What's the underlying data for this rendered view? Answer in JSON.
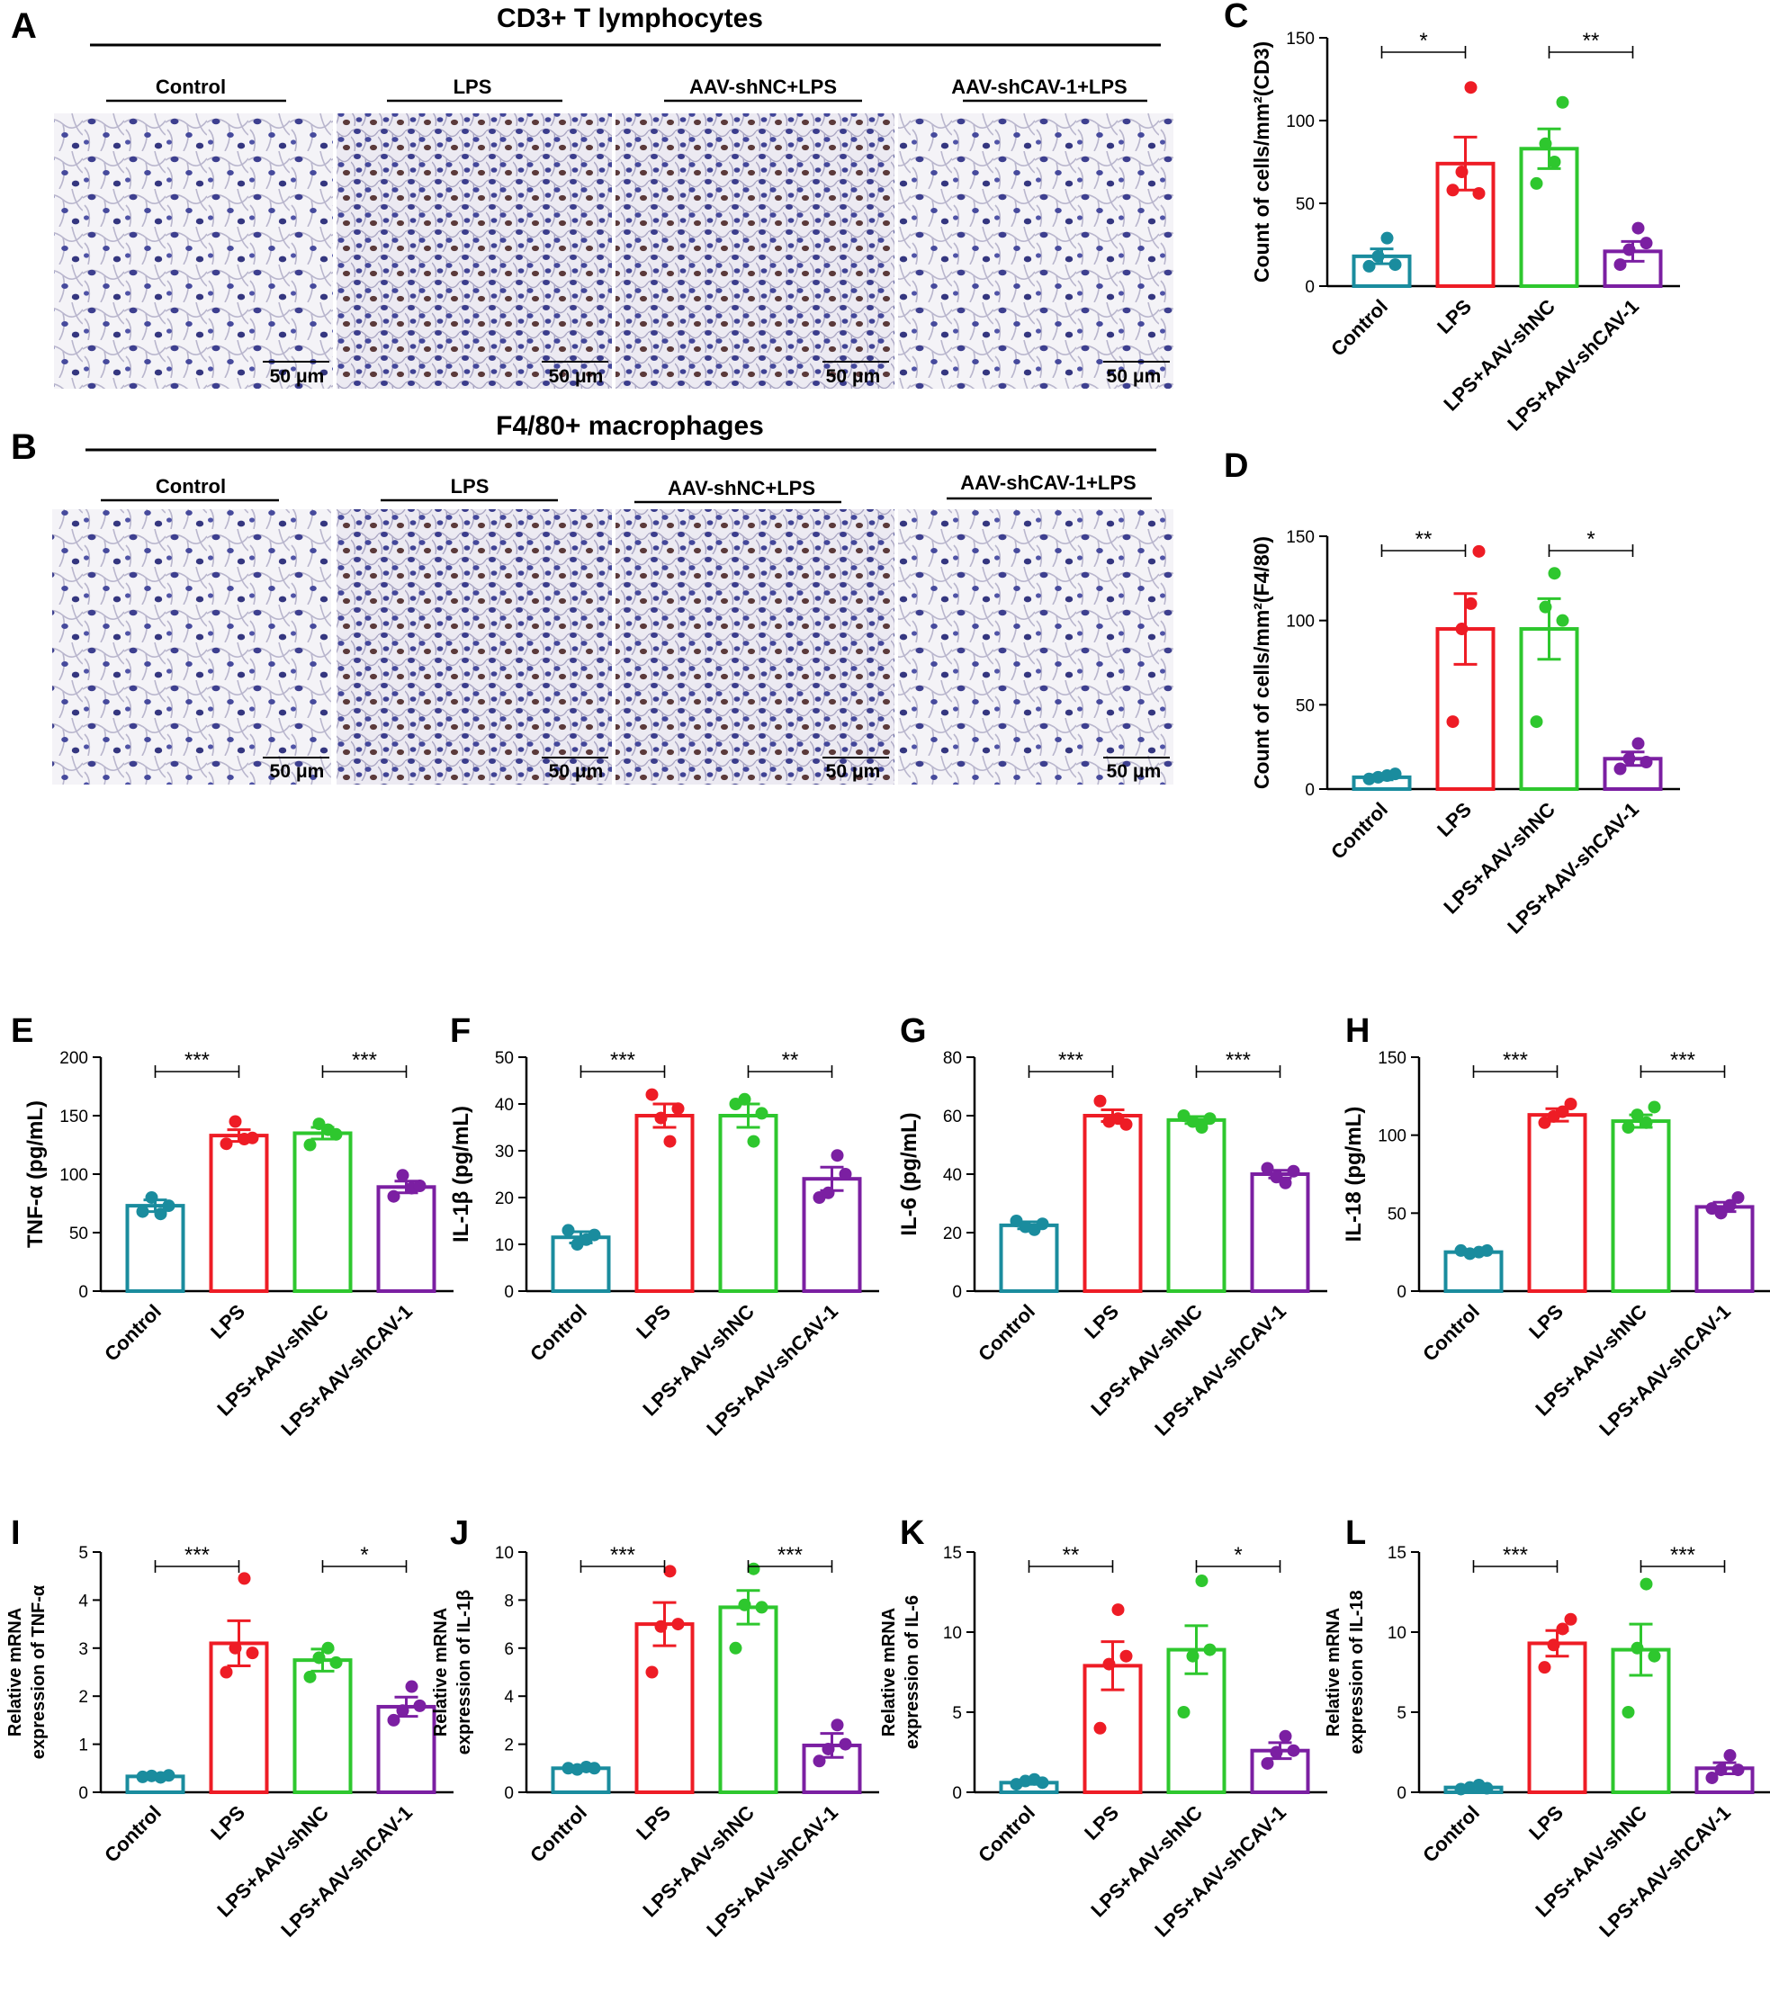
{
  "figure": {
    "panel_a": {
      "letter": "A",
      "title": "CD3+ T lymphocytes",
      "labels": [
        "Control",
        "LPS",
        "AAV-shNC+LPS",
        "AAV-shCAV-1+LPS"
      ],
      "scale_bars": [
        "50 μm",
        "50 μm",
        "50 μm",
        "50 μm"
      ]
    },
    "panel_b": {
      "letter": "B",
      "title": "F4/80+ macrophages",
      "labels": [
        "Control",
        "LPS",
        "AAV-shNC+LPS",
        "AAV-shCAV-1+LPS"
      ],
      "scale_bars": [
        "50 μm",
        "50 μm",
        "50 μm",
        "50 μm"
      ]
    }
  },
  "colors": {
    "control": "#1a8c9e",
    "lps": "#ee1c25",
    "shnc": "#2ec72e",
    "shcav": "#7b1fa2"
  },
  "chart_data": [
    {
      "id": "C",
      "letter": "C",
      "type": "bar",
      "ylabel": "Count of cells/mm²(CD3)",
      "ylim": [
        0,
        150
      ],
      "yticks": [
        0,
        50,
        100,
        150
      ],
      "categories": [
        "Control",
        "LPS",
        "LPS+AAV-shNC",
        "LPS+AAV-shCAV-1"
      ],
      "values": [
        18,
        74,
        83,
        21
      ],
      "errors": [
        4.5,
        16,
        12,
        6
      ],
      "points": [
        [
          12,
          18,
          29,
          13
        ],
        [
          58,
          69,
          120,
          56
        ],
        [
          62,
          86,
          75,
          111
        ],
        [
          13,
          22,
          35,
          26
        ]
      ],
      "significance": [
        {
          "from": 0,
          "to": 1,
          "label": "*"
        },
        {
          "from": 2,
          "to": 3,
          "label": "**"
        }
      ]
    },
    {
      "id": "D",
      "letter": "D",
      "type": "bar",
      "ylabel": "Count of cells/mm²(F4/80)",
      "ylim": [
        0,
        150
      ],
      "yticks": [
        0,
        50,
        100,
        150
      ],
      "categories": [
        "Control",
        "LPS",
        "LPS+AAV-shNC",
        "LPS+AAV-shCAV-1"
      ],
      "values": [
        7,
        95,
        95,
        18
      ],
      "errors": [
        1.5,
        21,
        18,
        4
      ],
      "points": [
        [
          6,
          7,
          8,
          9
        ],
        [
          40,
          95,
          110,
          141
        ],
        [
          40,
          108,
          128,
          100
        ],
        [
          12,
          18,
          27,
          16
        ]
      ],
      "significance": [
        {
          "from": 0,
          "to": 1,
          "label": "**"
        },
        {
          "from": 2,
          "to": 3,
          "label": "*"
        }
      ]
    },
    {
      "id": "E",
      "letter": "E",
      "type": "bar",
      "ylabel": "TNF-α (pg/mL)",
      "ylim": [
        0,
        200
      ],
      "yticks": [
        0,
        50,
        100,
        150,
        200
      ],
      "categories": [
        "Control",
        "LPS",
        "LPS+AAV-shNC",
        "LPS+AAV-shCAV-1"
      ],
      "values": [
        73,
        133,
        135,
        89
      ],
      "errors": [
        5,
        5,
        5,
        5
      ],
      "points": [
        [
          68,
          80,
          66,
          73
        ],
        [
          126,
          145,
          130,
          131
        ],
        [
          125,
          143,
          138,
          134
        ],
        [
          81,
          99,
          88,
          90
        ]
      ],
      "significance": [
        {
          "from": 0,
          "to": 1,
          "label": "***"
        },
        {
          "from": 2,
          "to": 3,
          "label": "***"
        }
      ]
    },
    {
      "id": "F",
      "letter": "F",
      "type": "bar",
      "ylabel": "IL-1β (pg/mL)",
      "ylim": [
        0,
        50
      ],
      "yticks": [
        0,
        10,
        20,
        30,
        40,
        50
      ],
      "categories": [
        "Control",
        "LPS",
        "LPS+AAV-shNC",
        "LPS+AAV-shCAV-1"
      ],
      "values": [
        11.5,
        37.5,
        37.5,
        24
      ],
      "errors": [
        1.2,
        2.5,
        2.5,
        2.5
      ],
      "points": [
        [
          13,
          10,
          11,
          12
        ],
        [
          42,
          37,
          32,
          39
        ],
        [
          40,
          41,
          32,
          38
        ],
        [
          20,
          21,
          29,
          25
        ]
      ],
      "significance": [
        {
          "from": 0,
          "to": 1,
          "label": "***"
        },
        {
          "from": 2,
          "to": 3,
          "label": "**"
        }
      ]
    },
    {
      "id": "G",
      "letter": "G",
      "type": "bar",
      "ylabel": "IL-6 (pg/mL)",
      "ylim": [
        0,
        80
      ],
      "yticks": [
        0,
        20,
        40,
        60,
        80
      ],
      "categories": [
        "Control",
        "LPS",
        "LPS+AAV-shNC",
        "LPS+AAV-shCAV-1"
      ],
      "values": [
        22.5,
        60,
        58.5,
        40
      ],
      "errors": [
        1.2,
        2,
        1.2,
        1.3
      ],
      "points": [
        [
          24,
          22,
          21,
          23
        ],
        [
          65,
          58,
          59,
          57
        ],
        [
          60,
          58,
          56,
          59
        ],
        [
          42,
          39,
          37,
          41
        ]
      ],
      "significance": [
        {
          "from": 0,
          "to": 1,
          "label": "***"
        },
        {
          "from": 2,
          "to": 3,
          "label": "***"
        }
      ]
    },
    {
      "id": "H",
      "letter": "H",
      "type": "bar",
      "ylabel": "IL-18 (pg/mL)",
      "ylim": [
        0,
        150
      ],
      "yticks": [
        0,
        50,
        100,
        150
      ],
      "categories": [
        "Control",
        "LPS",
        "LPS+AAV-shNC",
        "LPS+AAV-shCAV-1"
      ],
      "values": [
        25,
        113,
        109,
        54
      ],
      "errors": [
        1,
        4,
        4,
        3
      ],
      "points": [
        [
          26,
          24,
          25,
          26
        ],
        [
          108,
          112,
          115,
          120
        ],
        [
          105,
          113,
          108,
          118
        ],
        [
          53,
          50,
          55,
          60
        ]
      ],
      "significance": [
        {
          "from": 0,
          "to": 1,
          "label": "***"
        },
        {
          "from": 2,
          "to": 3,
          "label": "***"
        }
      ]
    },
    {
      "id": "I",
      "letter": "I",
      "type": "bar",
      "ylabel": "Relative mRNA expression of TNF-α",
      "ylim": [
        0,
        5
      ],
      "yticks": [
        0,
        1,
        2,
        3,
        4,
        5
      ],
      "categories": [
        "Control",
        "LPS",
        "LPS+AAV-shNC",
        "LPS+AAV-shCAV-1"
      ],
      "values": [
        0.33,
        3.1,
        2.75,
        1.78
      ],
      "errors": [
        0.03,
        0.47,
        0.23,
        0.2
      ],
      "points": [
        [
          0.32,
          0.34,
          0.31,
          0.35
        ],
        [
          2.5,
          3.0,
          4.45,
          2.9
        ],
        [
          2.4,
          2.8,
          3.0,
          2.7
        ],
        [
          1.5,
          1.7,
          2.2,
          1.8
        ]
      ],
      "significance": [
        {
          "from": 0,
          "to": 1,
          "label": "***"
        },
        {
          "from": 2,
          "to": 3,
          "label": "*"
        }
      ]
    },
    {
      "id": "J",
      "letter": "J",
      "type": "bar",
      "ylabel": "Relative mRNA expression of IL-1β",
      "ylim": [
        0,
        10
      ],
      "yticks": [
        0,
        2,
        4,
        6,
        8,
        10
      ],
      "categories": [
        "Control",
        "LPS",
        "LPS+AAV-shNC",
        "LPS+AAV-shCAV-1"
      ],
      "values": [
        1.0,
        7.0,
        7.7,
        1.95
      ],
      "errors": [
        0.05,
        0.9,
        0.7,
        0.5
      ],
      "points": [
        [
          1.0,
          0.95,
          1.05,
          1.0
        ],
        [
          5.0,
          6.9,
          9.2,
          7.0
        ],
        [
          6.0,
          7.8,
          9.3,
          7.7
        ],
        [
          1.3,
          1.8,
          2.8,
          2.0
        ]
      ],
      "significance": [
        {
          "from": 0,
          "to": 1,
          "label": "***"
        },
        {
          "from": 2,
          "to": 3,
          "label": "***"
        }
      ]
    },
    {
      "id": "K",
      "letter": "K",
      "type": "bar",
      "ylabel": "Relative mRNA expression of IL-6",
      "ylim": [
        0,
        15
      ],
      "yticks": [
        0,
        5,
        10,
        15
      ],
      "categories": [
        "Control",
        "LPS",
        "LPS+AAV-shNC",
        "LPS+AAV-shCAV-1"
      ],
      "values": [
        0.6,
        7.9,
        8.9,
        2.6
      ],
      "errors": [
        0.1,
        1.5,
        1.5,
        0.5
      ],
      "points": [
        [
          0.5,
          0.7,
          0.8,
          0.6
        ],
        [
          4.0,
          8.0,
          11.4,
          8.5
        ],
        [
          5.0,
          8.5,
          13.2,
          8.9
        ],
        [
          1.8,
          2.5,
          3.5,
          2.6
        ]
      ],
      "significance": [
        {
          "from": 0,
          "to": 1,
          "label": "**"
        },
        {
          "from": 2,
          "to": 3,
          "label": "*"
        }
      ]
    },
    {
      "id": "L",
      "letter": "L",
      "type": "bar",
      "ylabel": "Relative mRNA expression of IL-18",
      "ylim": [
        0,
        15
      ],
      "yticks": [
        0,
        5,
        10,
        15
      ],
      "categories": [
        "Control",
        "LPS",
        "LPS+AAV-shNC",
        "LPS+AAV-shCAV-1"
      ],
      "values": [
        0.3,
        9.3,
        8.9,
        1.5
      ],
      "errors": [
        0.05,
        0.8,
        1.6,
        0.35
      ],
      "points": [
        [
          0.2,
          0.3,
          0.45,
          0.25
        ],
        [
          7.8,
          9.2,
          10.2,
          10.8
        ],
        [
          5.0,
          9.0,
          13.0,
          8.5
        ],
        [
          0.9,
          1.4,
          2.3,
          1.4
        ]
      ],
      "significance": [
        {
          "from": 0,
          "to": 1,
          "label": "***"
        },
        {
          "from": 2,
          "to": 3,
          "label": "***"
        }
      ]
    }
  ]
}
